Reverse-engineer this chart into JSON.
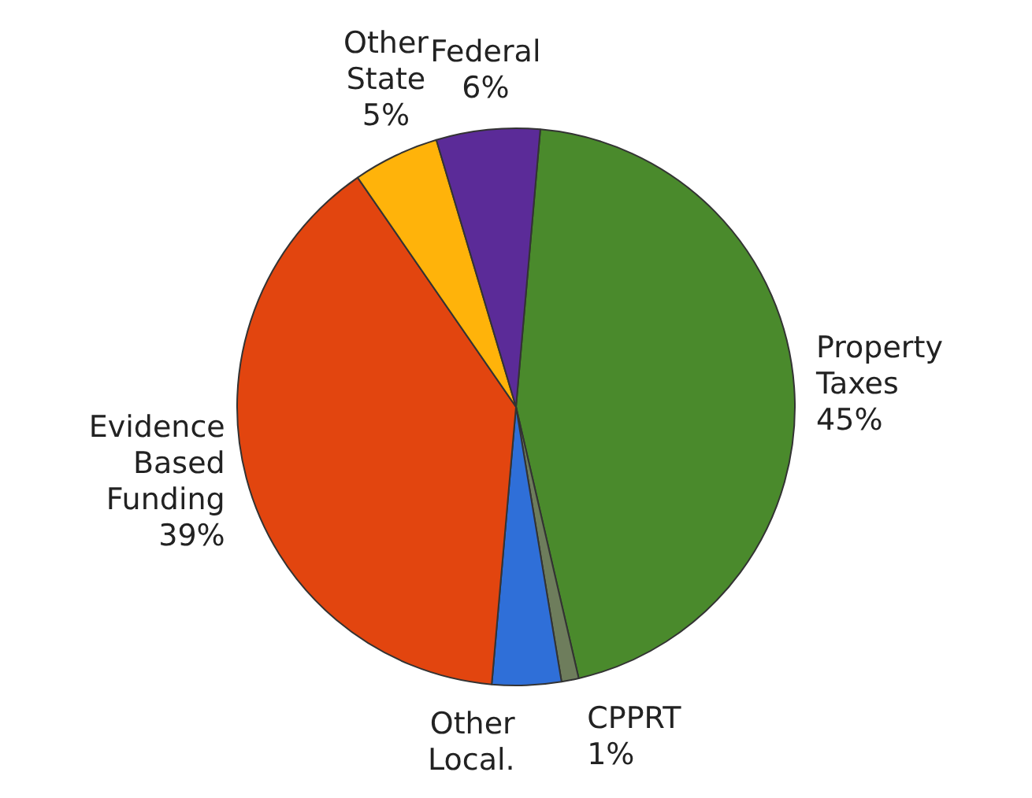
{
  "chart_data": {
    "type": "pie",
    "categories": [
      "Property Taxes",
      "CPPRT",
      "Other Local.",
      "Evidence Based Funding",
      "Other State",
      "Federal"
    ],
    "values": [
      45,
      1,
      4,
      39,
      5,
      6
    ],
    "colors": [
      "#4a8a2c",
      "#6e7d5c",
      "#2f6fd8",
      "#e2450f",
      "#ffb30a",
      "#5b2b98"
    ],
    "value_labels": [
      "45%",
      "1%",
      null,
      "39%",
      "5%",
      "6%"
    ],
    "legend": false
  }
}
